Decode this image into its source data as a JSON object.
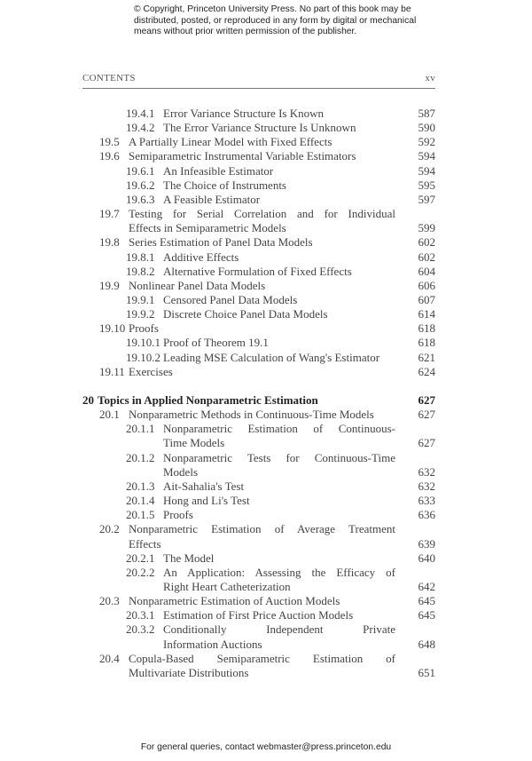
{
  "notice": "© Copyright, Princeton University Press. No part of this book may be distributed, posted, or reproduced in any form by digital or mechanical means without prior written permission of the publisher.",
  "running_head": {
    "title": "CONTENTS",
    "page": "xv"
  },
  "entries": [
    {
      "level": 2,
      "num": "19.4.1",
      "lines": [
        "Error Variance Structure Is Known"
      ],
      "page": "587"
    },
    {
      "level": 2,
      "num": "19.4.2",
      "lines": [
        "The Error Variance Structure Is Unknown"
      ],
      "page": "590"
    },
    {
      "level": 1,
      "num": "19.5",
      "lines": [
        "A Partially Linear Model with Fixed Effects"
      ],
      "page": "592"
    },
    {
      "level": 1,
      "num": "19.6",
      "lines": [
        "Semiparametric Instrumental Variable Estimators"
      ],
      "page": "594"
    },
    {
      "level": 2,
      "num": "19.6.1",
      "lines": [
        "An Infeasible Estimator"
      ],
      "page": "594"
    },
    {
      "level": 2,
      "num": "19.6.2",
      "lines": [
        "The Choice of Instruments"
      ],
      "page": "595"
    },
    {
      "level": 2,
      "num": "19.6.3",
      "lines": [
        "A Feasible Estimator"
      ],
      "page": "597"
    },
    {
      "level": 1,
      "num": "19.7",
      "lines": [
        "Testing for Serial Correlation and for Individual",
        "Effects in Semiparametric Models"
      ],
      "page": "599"
    },
    {
      "level": 1,
      "num": "19.8",
      "lines": [
        "Series Estimation of Panel Data Models"
      ],
      "page": "602"
    },
    {
      "level": 2,
      "num": "19.8.1",
      "lines": [
        "Additive Effects"
      ],
      "page": "602"
    },
    {
      "level": 2,
      "num": "19.8.2",
      "lines": [
        "Alternative Formulation of Fixed Effects"
      ],
      "page": "604"
    },
    {
      "level": 1,
      "num": "19.9",
      "lines": [
        "Nonlinear Panel Data Models"
      ],
      "page": "606"
    },
    {
      "level": 2,
      "num": "19.9.1",
      "lines": [
        "Censored Panel Data Models"
      ],
      "page": "607"
    },
    {
      "level": 2,
      "num": "19.9.2",
      "lines": [
        "Discrete Choice Panel Data Models"
      ],
      "page": "614"
    },
    {
      "level": 1,
      "num": "19.10",
      "lines": [
        "Proofs"
      ],
      "page": "618"
    },
    {
      "level": 2,
      "num": "19.10.1",
      "lines": [
        "Proof of Theorem 19.1"
      ],
      "page": "618"
    },
    {
      "level": 2,
      "num": "19.10.2",
      "lines": [
        "Leading MSE Calculation of Wang's Estimator"
      ],
      "page": "621"
    },
    {
      "level": 1,
      "num": "19.11",
      "lines": [
        "Exercises"
      ],
      "page": "624"
    },
    {
      "level": -1
    },
    {
      "level": 0,
      "num": "20",
      "lines": [
        "Topics in Applied Nonparametric Estimation"
      ],
      "page": "627"
    },
    {
      "level": 1,
      "num": "20.1",
      "lines": [
        "Nonparametric Methods in Continuous-Time Models"
      ],
      "page": "627"
    },
    {
      "level": 2,
      "num": "20.1.1",
      "lines": [
        "Nonparametric Estimation of Continuous-",
        "Time Models"
      ],
      "page": "627"
    },
    {
      "level": 2,
      "num": "20.1.2",
      "lines": [
        "Nonparametric Tests for Continuous-Time",
        "Models"
      ],
      "page": "632"
    },
    {
      "level": 2,
      "num": "20.1.3",
      "lines": [
        "Ait-Sahalia's Test"
      ],
      "page": "632"
    },
    {
      "level": 2,
      "num": "20.1.4",
      "lines": [
        "Hong and Li's Test"
      ],
      "page": "633"
    },
    {
      "level": 2,
      "num": "20.1.5",
      "lines": [
        "Proofs"
      ],
      "page": "636"
    },
    {
      "level": 1,
      "num": "20.2",
      "lines": [
        "Nonparametric Estimation of Average Treatment",
        "Effects"
      ],
      "page": "639"
    },
    {
      "level": 2,
      "num": "20.2.1",
      "lines": [
        "The Model"
      ],
      "page": "640"
    },
    {
      "level": 2,
      "num": "20.2.2",
      "lines": [
        "An Application: Assessing the Efficacy of",
        "Right Heart Catheterization"
      ],
      "page": "642"
    },
    {
      "level": 1,
      "num": "20.3",
      "lines": [
        "Nonparametric Estimation of Auction Models"
      ],
      "page": "645"
    },
    {
      "level": 2,
      "num": "20.3.1",
      "lines": [
        "Estimation of First Price Auction Models"
      ],
      "page": "645"
    },
    {
      "level": 2,
      "num": "20.3.2",
      "lines": [
        "Conditionally Independent Private",
        "Information Auctions"
      ],
      "page": "648"
    },
    {
      "level": 1,
      "num": "20.4",
      "lines": [
        "Copula-Based Semiparametric Estimation of",
        "Multivariate Distributions"
      ],
      "page": "651"
    }
  ],
  "footer": "For general queries, contact webmaster@press.princeton.edu"
}
